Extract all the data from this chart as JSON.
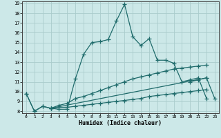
{
  "xlabel": "Humidex (Indice chaleur)",
  "xlim": [
    -0.5,
    23.5
  ],
  "ylim": [
    7.8,
    19.2
  ],
  "xticks": [
    0,
    1,
    2,
    3,
    4,
    5,
    6,
    7,
    8,
    9,
    10,
    11,
    12,
    13,
    14,
    15,
    16,
    17,
    18,
    19,
    20,
    21,
    22,
    23
  ],
  "yticks": [
    8,
    9,
    10,
    11,
    12,
    13,
    14,
    15,
    16,
    17,
    18,
    19
  ],
  "background_color": "#cce8e8",
  "grid_color": "#aacccc",
  "line_color": "#1f6b6b",
  "line_width": 0.9,
  "marker": "+",
  "marker_size": 4,
  "marker_edge_width": 0.9,
  "curves": [
    {
      "x": [
        0,
        1,
        2,
        3,
        4,
        5,
        6,
        7,
        8,
        9,
        10,
        11,
        12,
        13,
        14,
        15,
        16,
        17,
        18,
        19,
        20,
        21,
        22
      ],
      "y": [
        9.8,
        8.0,
        8.5,
        8.3,
        8.2,
        8.2,
        11.3,
        13.8,
        15.0,
        15.1,
        15.3,
        17.2,
        18.9,
        15.6,
        14.7,
        15.4,
        13.2,
        13.2,
        12.9,
        11.0,
        11.2,
        11.4,
        9.3
      ]
    },
    {
      "x": [
        0,
        1,
        2,
        3,
        22
      ],
      "y": [
        9.8,
        8.0,
        8.5,
        8.3,
        11.4
      ]
    },
    {
      "x": [
        3,
        4,
        5,
        6,
        7,
        8,
        9,
        10,
        11,
        12,
        13,
        14,
        15,
        16,
        17,
        18,
        19,
        20,
        21,
        22
      ],
      "y": [
        8.3,
        8.6,
        8.8,
        9.3,
        9.5,
        9.8,
        10.1,
        10.4,
        10.7,
        11.0,
        11.3,
        11.5,
        11.7,
        11.9,
        12.1,
        12.3,
        12.4,
        12.5,
        12.6,
        12.7
      ]
    },
    {
      "x": [
        3,
        4,
        5,
        6,
        7,
        8,
        9,
        10,
        11,
        12,
        13,
        14,
        15,
        16,
        17,
        18,
        19,
        20,
        21,
        22
      ],
      "y": [
        8.3,
        8.4,
        8.4,
        8.5,
        8.6,
        8.7,
        8.8,
        8.9,
        9.0,
        9.1,
        9.2,
        9.3,
        9.5,
        9.6,
        9.7,
        9.8,
        9.9,
        10.0,
        10.1,
        10.2
      ]
    },
    {
      "x": [
        20,
        21,
        22,
        23
      ],
      "y": [
        11.0,
        11.2,
        11.4,
        9.3
      ]
    }
  ]
}
